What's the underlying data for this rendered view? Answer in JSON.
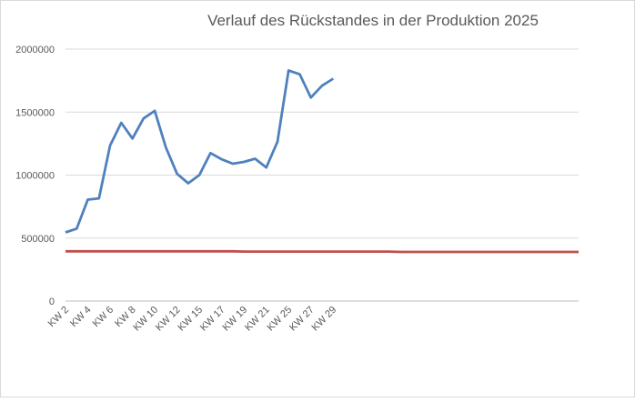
{
  "chart_data": {
    "type": "line",
    "title": "Verlauf des Rückstandes in der Produktion 2025",
    "categories": [
      "KW 2",
      null,
      "KW 4",
      null,
      "KW 6",
      null,
      "KW 8",
      null,
      "KW 10",
      null,
      "KW 12",
      null,
      "KW 15",
      null,
      "KW 17",
      null,
      "KW 19",
      null,
      "KW 21",
      null,
      "KW 25",
      null,
      "KW 27",
      null,
      "KW 29",
      null,
      null,
      null,
      null,
      null,
      null,
      null,
      null,
      null,
      null,
      null,
      null,
      null,
      null,
      null,
      null,
      null,
      null,
      null,
      null,
      null,
      null
    ],
    "series": [
      {
        "color": "#4f81bd",
        "values": [
          545000,
          575000,
          805000,
          815000,
          1235000,
          1415000,
          1290000,
          1450000,
          1510000,
          1220000,
          1010000,
          935000,
          1000000,
          1175000,
          1125000,
          1090000,
          1105000,
          1130000,
          1060000,
          1265000,
          1830000,
          1800000,
          1615000,
          1710000,
          1765000,
          null,
          null,
          null,
          null,
          null,
          null,
          null,
          null,
          null,
          null,
          null,
          null,
          null,
          null,
          null,
          null,
          null,
          null,
          null,
          null,
          null,
          null
        ]
      },
      {
        "color": "#c0504d",
        "values": [
          395000,
          395000,
          395000,
          395000,
          395000,
          395000,
          395000,
          395000,
          395000,
          395000,
          395000,
          395000,
          395000,
          395000,
          395000,
          395000,
          393000,
          393000,
          393000,
          393000,
          393000,
          393000,
          393000,
          393000,
          393000,
          393000,
          393000,
          393000,
          393000,
          393000,
          390000,
          390000,
          390000,
          390000,
          390000,
          390000,
          390000,
          390000,
          390000,
          390000,
          390000,
          390000,
          390000,
          390000,
          390000,
          390000,
          390000
        ]
      }
    ],
    "ylim": [
      0,
      2000000
    ],
    "yticks": [
      0,
      500000,
      1000000,
      1500000,
      2000000
    ],
    "grid": true
  }
}
